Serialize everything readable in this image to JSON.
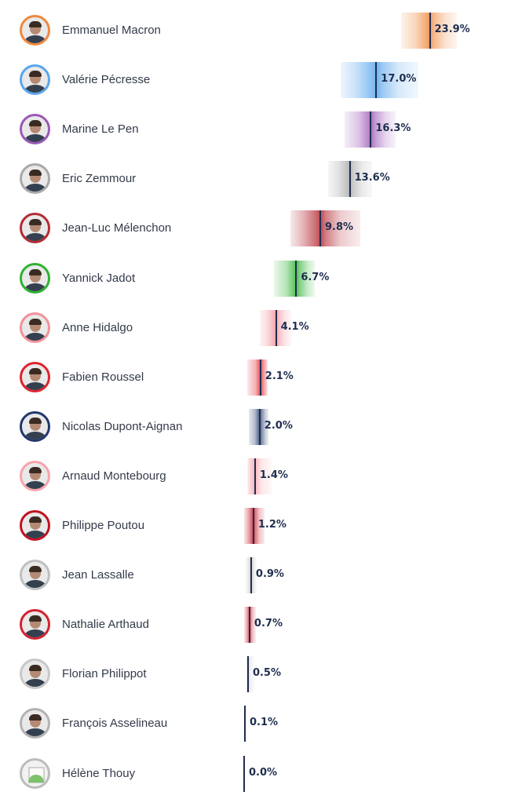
{
  "chart_data": {
    "type": "bar",
    "title": "",
    "xlabel": "",
    "ylabel": "",
    "xlim": [
      0,
      30
    ],
    "unit": "%",
    "series": [
      {
        "name": "Emmanuel Macron",
        "value": 23.9,
        "label": "23.9%",
        "range": [
          20.2,
          27.4
        ],
        "color": "#f0883e"
      },
      {
        "name": "Valérie Pécresse",
        "value": 17.0,
        "label": "17.0%",
        "range": [
          12.4,
          22.4
        ],
        "color": "#5aa6ec"
      },
      {
        "name": "Marine Le Pen",
        "value": 16.3,
        "label": "16.3%",
        "range": [
          12.9,
          19.5
        ],
        "color": "#9b59b6"
      },
      {
        "name": "Eric Zemmour",
        "value": 13.6,
        "label": "13.6%",
        "range": [
          10.8,
          16.5
        ],
        "color": "#a9a9a9"
      },
      {
        "name": "Jean-Luc Mélenchon",
        "value": 9.8,
        "label": "9.8%",
        "range": [
          6.0,
          14.9
        ],
        "color": "#b52a35"
      },
      {
        "name": "Yannick Jadot",
        "value": 6.7,
        "label": "6.7%",
        "range": [
          3.8,
          9.1
        ],
        "color": "#2db232"
      },
      {
        "name": "Anne Hidalgo",
        "value": 4.1,
        "label": "4.1%",
        "range": [
          2.0,
          6.1
        ],
        "color": "#f4919a"
      },
      {
        "name": "Fabien Roussel",
        "value": 2.1,
        "label": "2.1%",
        "range": [
          0.4,
          3.0
        ],
        "color": "#e0232e"
      },
      {
        "name": "Nicolas Dupont-Aignan",
        "value": 2.0,
        "label": "2.0%",
        "range": [
          0.6,
          3.1
        ],
        "color": "#21386b"
      },
      {
        "name": "Arnaud Montebourg",
        "value": 1.4,
        "label": "1.4%",
        "range": [
          0.4,
          3.5
        ],
        "color": "#f7a4ab"
      },
      {
        "name": "Philippe Poutou",
        "value": 1.2,
        "label": "1.2%",
        "range": [
          0.0,
          2.6
        ],
        "color": "#c1121f"
      },
      {
        "name": "Jean Lassalle",
        "value": 0.9,
        "label": "0.9%",
        "range": [
          0.2,
          1.6
        ],
        "color": "#c0c0c0"
      },
      {
        "name": "Nathalie Arthaud",
        "value": 0.7,
        "label": "0.7%",
        "range": [
          0.0,
          1.5
        ],
        "color": "#d32230"
      },
      {
        "name": "Florian Philippot",
        "value": 0.5,
        "label": "0.5%",
        "range": [
          0.3,
          1.3
        ],
        "color": "#c8c8c8"
      },
      {
        "name": "François Asselineau",
        "value": 0.1,
        "label": "0.1%",
        "range": [
          0.0,
          0.1
        ],
        "color": "#b3b3b3"
      },
      {
        "name": "Hélène Thouy",
        "value": 0.0,
        "label": "0.0%",
        "range": [
          0.0,
          0.0
        ],
        "color": "#bcbcbc",
        "placeholder": true
      }
    ]
  }
}
